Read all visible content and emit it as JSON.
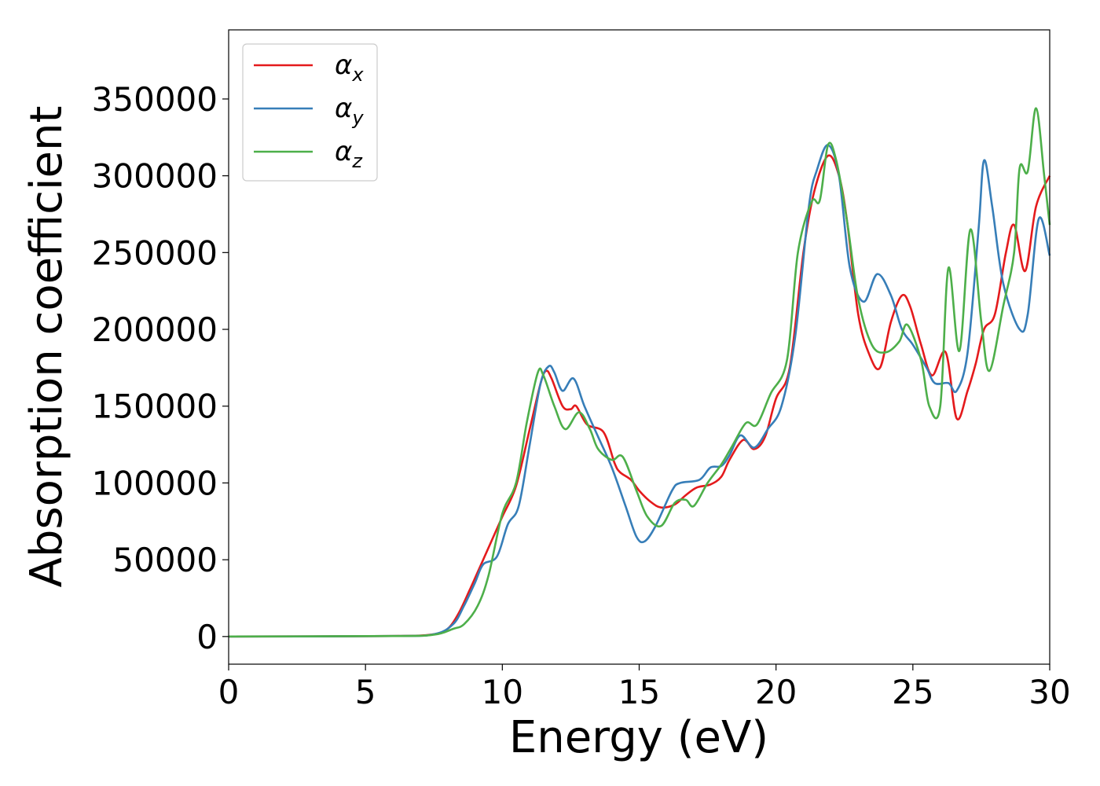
{
  "chart_data": {
    "type": "line",
    "title": "",
    "xlabel": "Energy (eV)",
    "ylabel": "Absorption coefficient",
    "xlim": [
      0,
      30
    ],
    "ylim": [
      -18000,
      395000
    ],
    "xticks": [
      0,
      5,
      10,
      15,
      20,
      25,
      30
    ],
    "xtick_labels": [
      "0",
      "5",
      "10",
      "15",
      "20",
      "25",
      "30"
    ],
    "yticks": [
      0,
      50000,
      100000,
      150000,
      200000,
      250000,
      300000,
      350000
    ],
    "ytick_labels": [
      "0",
      "50000",
      "100000",
      "150000",
      "200000",
      "250000",
      "300000",
      "350000"
    ],
    "grid": false,
    "legend_position": "top-left",
    "series": [
      {
        "name": "α_x",
        "legend_symbol": "α",
        "legend_sub": "x",
        "color": "#e41a1c",
        "points": [
          [
            0,
            0
          ],
          [
            6,
            300
          ],
          [
            7.5,
            1500
          ],
          [
            8,
            5000
          ],
          [
            8.4,
            15000
          ],
          [
            8.8,
            30000
          ],
          [
            9.1,
            42000
          ],
          [
            9.5,
            58000
          ],
          [
            10,
            78000
          ],
          [
            10.5,
            98000
          ],
          [
            11,
            135000
          ],
          [
            11.4,
            165000
          ],
          [
            11.6,
            173000
          ],
          [
            11.8,
            168000
          ],
          [
            12.2,
            150000
          ],
          [
            12.5,
            148000
          ],
          [
            12.7,
            150000
          ],
          [
            13.1,
            138000
          ],
          [
            13.7,
            133000
          ],
          [
            14.1,
            113000
          ],
          [
            14.3,
            107000
          ],
          [
            14.7,
            102000
          ],
          [
            15,
            95000
          ],
          [
            15.4,
            88000
          ],
          [
            15.8,
            84000
          ],
          [
            16.3,
            86000
          ],
          [
            16.7,
            92000
          ],
          [
            17.1,
            97000
          ],
          [
            17.6,
            99000
          ],
          [
            18,
            104000
          ],
          [
            18.3,
            115000
          ],
          [
            18.8,
            128000
          ],
          [
            19.2,
            122000
          ],
          [
            19.6,
            130000
          ],
          [
            20,
            155000
          ],
          [
            20.5,
            175000
          ],
          [
            21,
            250000
          ],
          [
            21.4,
            290000
          ],
          [
            21.9,
            313000
          ],
          [
            22.3,
            300000
          ],
          [
            22.6,
            270000
          ],
          [
            23,
            210000
          ],
          [
            23.4,
            184000
          ],
          [
            23.8,
            175000
          ],
          [
            24.2,
            205000
          ],
          [
            24.6,
            222000
          ],
          [
            24.9,
            215000
          ],
          [
            25.3,
            190000
          ],
          [
            25.7,
            170000
          ],
          [
            26.2,
            185000
          ],
          [
            26.6,
            142000
          ],
          [
            27,
            160000
          ],
          [
            27.3,
            178000
          ],
          [
            27.6,
            200000
          ],
          [
            28,
            210000
          ],
          [
            28.4,
            250000
          ],
          [
            28.7,
            268000
          ],
          [
            29.1,
            238000
          ],
          [
            29.5,
            280000
          ],
          [
            30,
            300000
          ]
        ]
      },
      {
        "name": "α_y",
        "legend_symbol": "α",
        "legend_sub": "y",
        "color": "#377eb8",
        "points": [
          [
            0,
            0
          ],
          [
            6,
            300
          ],
          [
            7.5,
            1500
          ],
          [
            8.2,
            8000
          ],
          [
            8.6,
            20000
          ],
          [
            9,
            35000
          ],
          [
            9.3,
            47000
          ],
          [
            9.8,
            52000
          ],
          [
            10.2,
            73000
          ],
          [
            10.6,
            85000
          ],
          [
            11,
            125000
          ],
          [
            11.4,
            165000
          ],
          [
            11.7,
            176000
          ],
          [
            11.9,
            172000
          ],
          [
            12.2,
            160000
          ],
          [
            12.6,
            168000
          ],
          [
            13,
            150000
          ],
          [
            13.5,
            130000
          ],
          [
            14,
            110000
          ],
          [
            14.5,
            85000
          ],
          [
            14.9,
            65000
          ],
          [
            15.2,
            62000
          ],
          [
            15.6,
            72000
          ],
          [
            16.2,
            95000
          ],
          [
            16.5,
            100000
          ],
          [
            17.2,
            102000
          ],
          [
            17.6,
            110000
          ],
          [
            18,
            111000
          ],
          [
            18.3,
            118000
          ],
          [
            18.7,
            131000
          ],
          [
            19.2,
            123000
          ],
          [
            19.7,
            135000
          ],
          [
            20.2,
            150000
          ],
          [
            20.7,
            195000
          ],
          [
            21.2,
            280000
          ],
          [
            21.5,
            304000
          ],
          [
            21.9,
            320000
          ],
          [
            22.3,
            300000
          ],
          [
            22.7,
            240000
          ],
          [
            23.2,
            218000
          ],
          [
            23.7,
            236000
          ],
          [
            24.2,
            222000
          ],
          [
            24.6,
            200000
          ],
          [
            25,
            190000
          ],
          [
            25.5,
            175000
          ],
          [
            25.8,
            165000
          ],
          [
            26.3,
            165000
          ],
          [
            26.6,
            160000
          ],
          [
            27,
            185000
          ],
          [
            27.4,
            265000
          ],
          [
            27.6,
            310000
          ],
          [
            27.9,
            280000
          ],
          [
            28.3,
            230000
          ],
          [
            28.9,
            200000
          ],
          [
            29.2,
            210000
          ],
          [
            29.6,
            272000
          ],
          [
            30,
            248000
          ]
        ]
      },
      {
        "name": "α_z",
        "legend_symbol": "α",
        "legend_sub": "z",
        "color": "#4daf4a",
        "points": [
          [
            0,
            0
          ],
          [
            6,
            300
          ],
          [
            7.5,
            1200
          ],
          [
            8.2,
            5000
          ],
          [
            8.6,
            8000
          ],
          [
            9.1,
            20000
          ],
          [
            9.5,
            40000
          ],
          [
            10,
            80000
          ],
          [
            10.5,
            100000
          ],
          [
            10.9,
            140000
          ],
          [
            11.3,
            172000
          ],
          [
            11.5,
            170000
          ],
          [
            11.9,
            150000
          ],
          [
            12.3,
            135000
          ],
          [
            12.8,
            146000
          ],
          [
            13.2,
            135000
          ],
          [
            13.5,
            122000
          ],
          [
            14,
            115000
          ],
          [
            14.4,
            117000
          ],
          [
            14.9,
            95000
          ],
          [
            15.3,
            78000
          ],
          [
            15.8,
            72000
          ],
          [
            16.3,
            87000
          ],
          [
            16.7,
            89000
          ],
          [
            17,
            85000
          ],
          [
            17.5,
            100000
          ],
          [
            18,
            112000
          ],
          [
            18.4,
            124000
          ],
          [
            18.9,
            139000
          ],
          [
            19.3,
            138000
          ],
          [
            19.8,
            158000
          ],
          [
            20.4,
            180000
          ],
          [
            20.8,
            250000
          ],
          [
            21.3,
            283000
          ],
          [
            21.6,
            284000
          ],
          [
            21.9,
            320000
          ],
          [
            22.2,
            310000
          ],
          [
            22.6,
            270000
          ],
          [
            23,
            220000
          ],
          [
            23.5,
            190000
          ],
          [
            24,
            185000
          ],
          [
            24.5,
            192000
          ],
          [
            24.8,
            203000
          ],
          [
            25.3,
            180000
          ],
          [
            25.6,
            150000
          ],
          [
            26,
            150000
          ],
          [
            26.3,
            240000
          ],
          [
            26.7,
            186000
          ],
          [
            27.1,
            265000
          ],
          [
            27.5,
            205000
          ],
          [
            27.8,
            173000
          ],
          [
            28.3,
            215000
          ],
          [
            28.7,
            250000
          ],
          [
            28.9,
            305000
          ],
          [
            29.2,
            303000
          ],
          [
            29.5,
            344000
          ],
          [
            29.8,
            300000
          ],
          [
            30,
            268000
          ]
        ]
      }
    ]
  }
}
